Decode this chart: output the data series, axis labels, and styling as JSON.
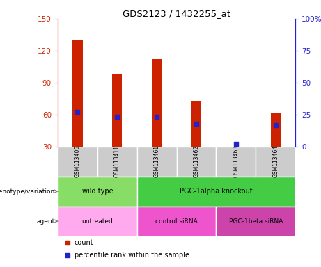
{
  "title": "GDS2123 / 1432255_at",
  "samples": [
    "GSM113409",
    "GSM113411",
    "GSM113461",
    "GSM113462",
    "GSM113463",
    "GSM113464"
  ],
  "counts": [
    130,
    98,
    112,
    73,
    28,
    62
  ],
  "percentile_ranks": [
    27,
    23,
    23,
    18,
    2,
    17
  ],
  "ylim_left": [
    30,
    150
  ],
  "ylim_right": [
    0,
    100
  ],
  "yticks_left": [
    30,
    60,
    90,
    120,
    150
  ],
  "yticks_right": [
    0,
    25,
    50,
    75,
    100
  ],
  "bar_color": "#cc2200",
  "dot_color": "#2222cc",
  "bar_width": 0.25,
  "groups_genotype": [
    {
      "label": "wild type",
      "cols": [
        0,
        1
      ],
      "color": "#88dd66"
    },
    {
      "label": "PGC-1alpha knockout",
      "cols": [
        2,
        3,
        4,
        5
      ],
      "color": "#44cc44"
    }
  ],
  "groups_agent": [
    {
      "label": "untreated",
      "cols": [
        0,
        1
      ],
      "color": "#ffaaee"
    },
    {
      "label": "control siRNA",
      "cols": [
        2,
        3
      ],
      "color": "#ee55cc"
    },
    {
      "label": "PGC-1beta siRNA",
      "cols": [
        4,
        5
      ],
      "color": "#cc44aa"
    }
  ],
  "sample_bg_color": "#cccccc",
  "left_axis_color": "#cc2200",
  "right_axis_color": "#2222cc",
  "bg_color": "#ffffff"
}
